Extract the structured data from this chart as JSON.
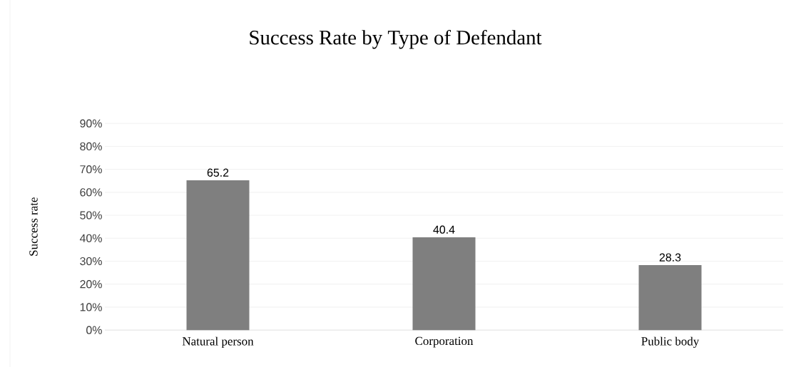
{
  "chart_data": {
    "type": "bar",
    "title": "Success Rate by Type of Defendant",
    "ylabel": "Success rate",
    "categories": [
      "Natural person",
      "Corporation",
      "Public body"
    ],
    "values": [
      65.2,
      40.4,
      28.3
    ],
    "color": "#7f7f7f",
    "ylim": [
      0,
      90
    ],
    "yticks": [
      {
        "value": 0,
        "label": "0%"
      },
      {
        "value": 10,
        "label": "10%"
      },
      {
        "value": 20,
        "label": "20%"
      },
      {
        "value": 30,
        "label": "30%"
      },
      {
        "value": 40,
        "label": "40%"
      },
      {
        "value": 50,
        "label": "50%"
      },
      {
        "value": 60,
        "label": "60%"
      },
      {
        "value": 70,
        "label": "70%"
      },
      {
        "value": 80,
        "label": "80%"
      },
      {
        "value": 90,
        "label": "90%"
      }
    ],
    "grid": "y",
    "data_labels": true
  }
}
